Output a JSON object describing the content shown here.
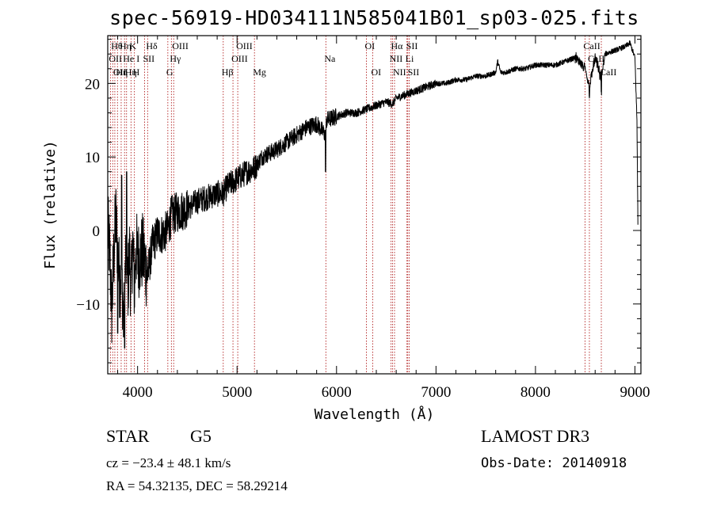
{
  "title": "spec-56919-HD034111N585041B01_sp03-025.fits",
  "footer": {
    "object_class": "STAR",
    "subclass": "G5",
    "survey": "LAMOST DR3",
    "cz_line": "cz = −23.4 ± 48.1 km/s",
    "obs_date_line": "Obs-Date: 20140918",
    "radec_line": "RA =  54.32135, DEC =  58.29214"
  },
  "chart_data": {
    "type": "line",
    "title": "spec-56919-HD034111N585041B01_sp03-025.fits",
    "xlabel": "Wavelength (Å)",
    "ylabel": "Flux (relative)",
    "xlim": [
      3700,
      9060
    ],
    "ylim": [
      -19.5,
      26.5
    ],
    "xticks": [
      4000,
      5000,
      6000,
      7000,
      8000,
      9000
    ],
    "xtick_labels": [
      "4000",
      "5000",
      "6000",
      "7000",
      "8000",
      "9000"
    ],
    "yticks": [
      -10,
      0,
      10,
      20
    ],
    "ytick_labels": [
      "−10",
      "0",
      "10",
      "20"
    ],
    "colors": {
      "spectrum": "#000000",
      "line_marker": "#b22222",
      "axes": "#000000"
    },
    "spectrum": {
      "anchors": [
        [
          3700,
          0
        ],
        [
          3720,
          -3
        ],
        [
          3740,
          -11
        ],
        [
          3760,
          -4
        ],
        [
          3780,
          2
        ],
        [
          3800,
          -3
        ],
        [
          3820,
          -7
        ],
        [
          3840,
          -5
        ],
        [
          3860,
          -13
        ],
        [
          3880,
          -4
        ],
        [
          3900,
          -8
        ],
        [
          3920,
          -3
        ],
        [
          3935,
          -9
        ],
        [
          3950,
          -1
        ],
        [
          3968,
          -8
        ],
        [
          3985,
          -2
        ],
        [
          4000,
          -4
        ],
        [
          4050,
          -3
        ],
        [
          4101,
          -6
        ],
        [
          4150,
          -2
        ],
        [
          4200,
          -0.5
        ],
        [
          4250,
          -0.5
        ],
        [
          4300,
          0
        ],
        [
          4340,
          2
        ],
        [
          4400,
          2.5
        ],
        [
          4500,
          3
        ],
        [
          4600,
          4
        ],
        [
          4700,
          4.5
        ],
        [
          4800,
          5
        ],
        [
          4861,
          5
        ],
        [
          4900,
          6
        ],
        [
          5000,
          7
        ],
        [
          5100,
          8
        ],
        [
          5175,
          8.5
        ],
        [
          5250,
          10
        ],
        [
          5400,
          11
        ],
        [
          5500,
          12
        ],
        [
          5600,
          13
        ],
        [
          5700,
          14
        ],
        [
          5800,
          14.5
        ],
        [
          5890,
          13
        ],
        [
          5900,
          15
        ],
        [
          6000,
          15.5
        ],
        [
          6100,
          16
        ],
        [
          6200,
          16
        ],
        [
          6300,
          16.5
        ],
        [
          6400,
          17
        ],
        [
          6500,
          17.5
        ],
        [
          6563,
          17.2
        ],
        [
          6600,
          18
        ],
        [
          6700,
          18.5
        ],
        [
          6800,
          19
        ],
        [
          6900,
          19.5
        ],
        [
          7000,
          20
        ],
        [
          7100,
          20
        ],
        [
          7200,
          20.5
        ],
        [
          7300,
          20.5
        ],
        [
          7400,
          21
        ],
        [
          7500,
          21
        ],
        [
          7600,
          21.5
        ],
        [
          7620,
          23
        ],
        [
          7650,
          21.5
        ],
        [
          7700,
          21.5
        ],
        [
          7800,
          22
        ],
        [
          7900,
          22
        ],
        [
          8000,
          22.5
        ],
        [
          8100,
          22.5
        ],
        [
          8200,
          22.5
        ],
        [
          8300,
          23
        ],
        [
          8400,
          23.5
        ],
        [
          8498,
          22
        ],
        [
          8542,
          19.5
        ],
        [
          8600,
          23.5
        ],
        [
          8662,
          20.5
        ],
        [
          8700,
          24
        ],
        [
          8800,
          24.5
        ],
        [
          8900,
          25
        ],
        [
          8950,
          25.5
        ],
        [
          9000,
          23.5
        ],
        [
          9020,
          15
        ],
        [
          9030,
          1
        ]
      ],
      "sharp_features": [
        {
          "x": 3800,
          "y": -14
        },
        {
          "x": 3840,
          "y": 7.5
        },
        {
          "x": 3870,
          "y": -16
        },
        {
          "x": 3890,
          "y": 8
        },
        {
          "x": 5890,
          "y": 8
        },
        {
          "x": 8542,
          "y": 18.5
        },
        {
          "x": 8662,
          "y": 19
        }
      ]
    },
    "line_markers": [
      {
        "wl": 3727,
        "label": "OII",
        "row": 1
      },
      {
        "wl": 3750,
        "label": "Hθ",
        "row": 0
      },
      {
        "wl": 3771,
        "label": "OII",
        "row": 2
      },
      {
        "wl": 3798,
        "label": "Hη",
        "row": 2
      },
      {
        "wl": 3835,
        "label": "Hη",
        "row": 0
      },
      {
        "wl": 3869,
        "label": "He I",
        "row": 1
      },
      {
        "wl": 3889,
        "label": "Hη",
        "row": 2
      },
      {
        "wl": 3934,
        "label": "K",
        "row": 0
      },
      {
        "wl": 3968,
        "label": "H",
        "row": 2
      },
      {
        "wl": 4070,
        "label": "SII",
        "row": 1
      },
      {
        "wl": 4101,
        "label": "Hδ",
        "row": 0
      },
      {
        "wl": 4304,
        "label": "G",
        "row": 2
      },
      {
        "wl": 4340,
        "label": "Hγ",
        "row": 1
      },
      {
        "wl": 4363,
        "label": "OIII",
        "row": 0
      },
      {
        "wl": 4861,
        "label": "Hβ",
        "row": 2
      },
      {
        "wl": 4959,
        "label": "OIII",
        "row": 1
      },
      {
        "wl": 5007,
        "label": "OIII",
        "row": 0
      },
      {
        "wl": 5175,
        "label": "Mg",
        "row": 2
      },
      {
        "wl": 5893,
        "label": "Na",
        "row": 1
      },
      {
        "wl": 6300,
        "label": "OI",
        "row": 0
      },
      {
        "wl": 6364,
        "label": "OI",
        "row": 2
      },
      {
        "wl": 6548,
        "label": "NII",
        "row": 1
      },
      {
        "wl": 6563,
        "label": "Hα",
        "row": 0
      },
      {
        "wl": 6583,
        "label": "NII",
        "row": 2
      },
      {
        "wl": 6708,
        "label": "Li",
        "row": 1
      },
      {
        "wl": 6716,
        "label": "SII",
        "row": 0
      },
      {
        "wl": 6731,
        "label": "SII",
        "row": 2
      },
      {
        "wl": 8498,
        "label": "CaII",
        "row": 0
      },
      {
        "wl": 8542,
        "label": "CaII",
        "row": 1
      },
      {
        "wl": 8662,
        "label": "CaII",
        "row": 2
      }
    ]
  }
}
